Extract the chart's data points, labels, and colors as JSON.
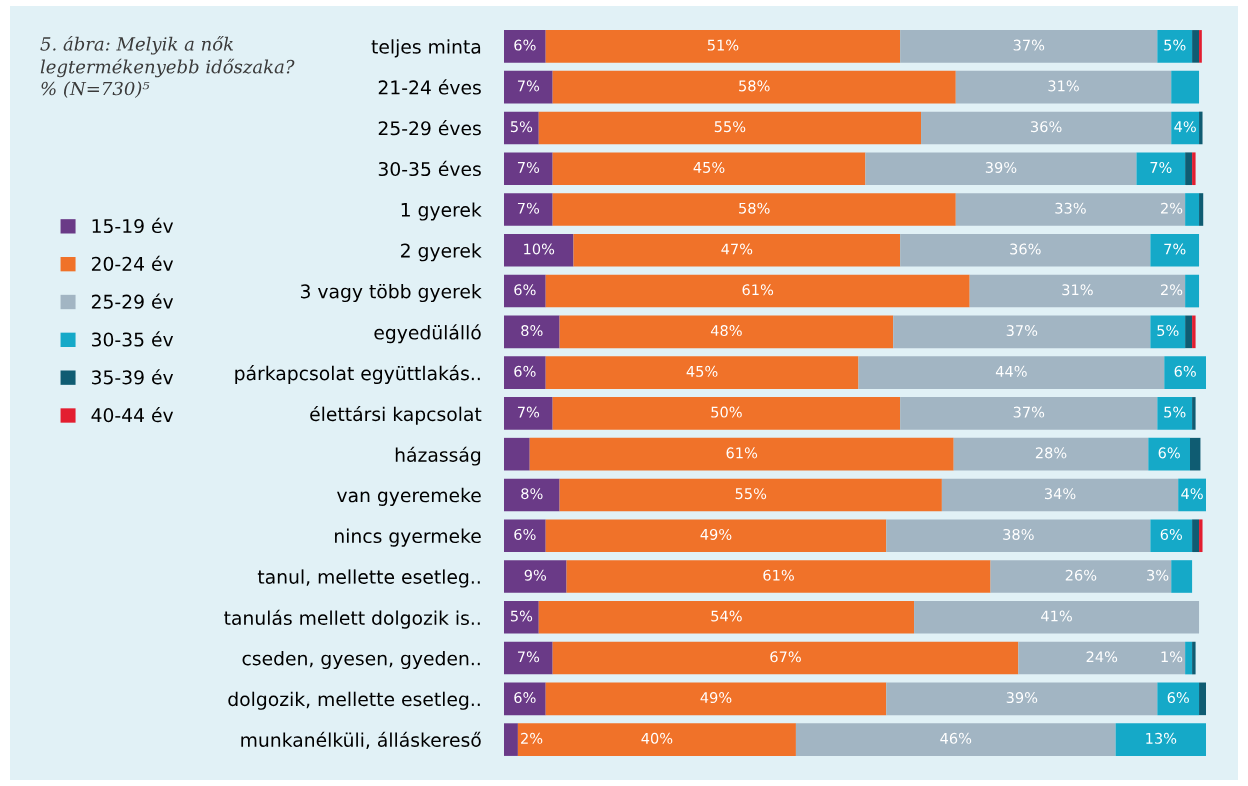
{
  "chart_data": {
    "type": "bar",
    "orientation": "horizontal",
    "stacked": true,
    "title": "5. ábra: Melyik a nők legtermékenyebb időszaka? % (N=730)⁵",
    "categories": [
      "teljes minta",
      "21-24 éves",
      "25-29 éves",
      "30-35 éves",
      "1 gyerek",
      "2 gyerek",
      "3 vagy több gyerek",
      "egyedülálló",
      "párkapcsolat együttlakás..",
      "élettársi kapcsolat",
      "házasság",
      "van gyeremeke",
      "nincs gyermeke",
      "tanul, mellette esetleg..",
      "tanulás mellett dolgozik is..",
      "cseden, gyesen, gyeden..",
      "dolgozik, mellette esetleg..",
      "munkanélküli, álláskereső"
    ],
    "xlim": [
      0,
      101
    ],
    "tick_labels": "y",
    "grid": false,
    "legend": "left",
    "series": [
      {
        "name": "15-19 év",
        "color": "#6a3a87",
        "values": [
          6,
          7,
          5,
          7,
          7,
          10,
          6,
          8,
          6,
          7,
          3.7,
          8,
          6,
          9,
          5,
          7,
          6,
          2
        ],
        "value_labels": [
          "6%",
          "7%",
          "5%",
          "7%",
          "7%",
          "10%",
          "6%",
          "8%",
          "6%",
          "7%",
          null,
          "8%",
          "6%",
          "9%",
          "5%",
          "7%",
          "6%",
          "2%"
        ]
      },
      {
        "name": "20-24 év",
        "color": "#f07229",
        "values": [
          51,
          58,
          55,
          45,
          58,
          47,
          61,
          48,
          45,
          50,
          61,
          55,
          49,
          61,
          54,
          67,
          49,
          40
        ],
        "value_labels": [
          "51%",
          "58%",
          "55%",
          "45%",
          "58%",
          "47%",
          "61%",
          "48%",
          "45%",
          "50%",
          "61%",
          "55%",
          "49%",
          "61%",
          "54%",
          "67%",
          "49%",
          "40%"
        ]
      },
      {
        "name": "25-29 év",
        "color": "#a2b5c3",
        "values": [
          37,
          31,
          36,
          39,
          33,
          36,
          31,
          37,
          44,
          37,
          28,
          34,
          38,
          26,
          41,
          24,
          39,
          46
        ],
        "value_labels": [
          "37%",
          "31%",
          "36%",
          "39%",
          "33%",
          "36%",
          "31%",
          "37%",
          "44%",
          "37%",
          "28%",
          "34%",
          "38%",
          "26%",
          "41%",
          "24%",
          "39%",
          "46%"
        ]
      },
      {
        "name": "30-35 év",
        "color": "#15a9c8",
        "values": [
          5,
          4,
          4,
          7,
          2,
          7,
          2,
          5,
          6,
          5,
          6,
          4,
          6,
          3,
          null,
          1,
          6,
          13
        ],
        "value_labels": [
          "5%",
          null,
          "4%",
          "7%",
          "2%",
          "7%",
          "2%",
          "5%",
          "6%",
          "5%",
          "6%",
          "4%",
          "6%",
          "3%",
          null,
          "1%",
          "6%",
          "13%"
        ]
      },
      {
        "name": "35-39 év",
        "color": "#0f5c72",
        "values": [
          1,
          null,
          0.5,
          1,
          0.6,
          null,
          null,
          1,
          null,
          0.5,
          1.5,
          null,
          1,
          null,
          null,
          0.5,
          1,
          null
        ]
      },
      {
        "name": "40-44 év",
        "color": "#e31e30",
        "values": [
          0.4,
          null,
          null,
          0.5,
          null,
          null,
          null,
          0.5,
          null,
          null,
          null,
          null,
          0.5,
          null,
          null,
          null,
          null,
          null
        ]
      }
    ]
  }
}
